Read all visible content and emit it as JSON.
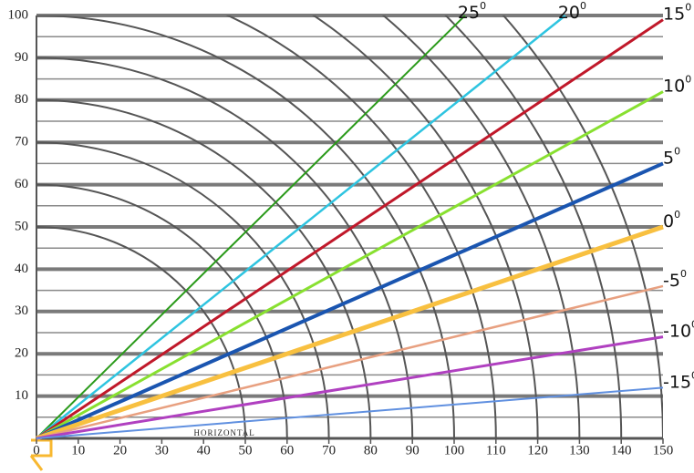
{
  "chart_data": {
    "type": "line",
    "xlim": [
      0,
      150
    ],
    "ylim": [
      0,
      100
    ],
    "xticks": [
      0,
      10,
      20,
      30,
      40,
      50,
      60,
      70,
      80,
      90,
      100,
      110,
      120,
      130,
      140,
      150
    ],
    "yticks": [
      10,
      20,
      30,
      40,
      50,
      60,
      70,
      80,
      90,
      100
    ],
    "minor_yticks": [
      5,
      15,
      25,
      35,
      45,
      55,
      65,
      75,
      85,
      95
    ],
    "grid": true,
    "arc_radii": [
      50,
      60,
      70,
      80,
      90,
      100,
      110,
      120,
      130,
      140,
      150
    ],
    "axis_note": "HORIZONTAL",
    "degree_symbol": "0",
    "series": [
      {
        "name": "25",
        "color": "#2a9a1a",
        "width": 2,
        "x": [
          0,
          102.6
        ],
        "values": [
          0,
          100
        ]
      },
      {
        "name": "20",
        "color": "#2ec4e0",
        "width": 2.5,
        "x": [
          0,
          126.6
        ],
        "values": [
          0,
          100
        ]
      },
      {
        "name": "15",
        "color": "#c0182a",
        "width": 3,
        "x": [
          0,
          150
        ],
        "values": [
          0,
          99
        ]
      },
      {
        "name": "10",
        "color": "#88e030",
        "width": 3,
        "x": [
          0,
          150
        ],
        "values": [
          0,
          82
        ]
      },
      {
        "name": "5",
        "color": "#1a55b0",
        "width": 4,
        "x": [
          0,
          150
        ],
        "values": [
          0,
          65
        ]
      },
      {
        "name": "0",
        "color": "#f8c040",
        "width": 5,
        "x": [
          0,
          150
        ],
        "values": [
          0,
          50
        ]
      },
      {
        "name": "-5",
        "color": "#e8a080",
        "width": 2.5,
        "x": [
          0,
          150
        ],
        "values": [
          0,
          36
        ]
      },
      {
        "name": "-10",
        "color": "#b040c0",
        "width": 3,
        "x": [
          0,
          150
        ],
        "values": [
          0,
          24
        ]
      },
      {
        "name": "-15",
        "color": "#6090e0",
        "width": 2,
        "x": [
          0,
          150
        ],
        "values": [
          0,
          12
        ]
      }
    ]
  }
}
